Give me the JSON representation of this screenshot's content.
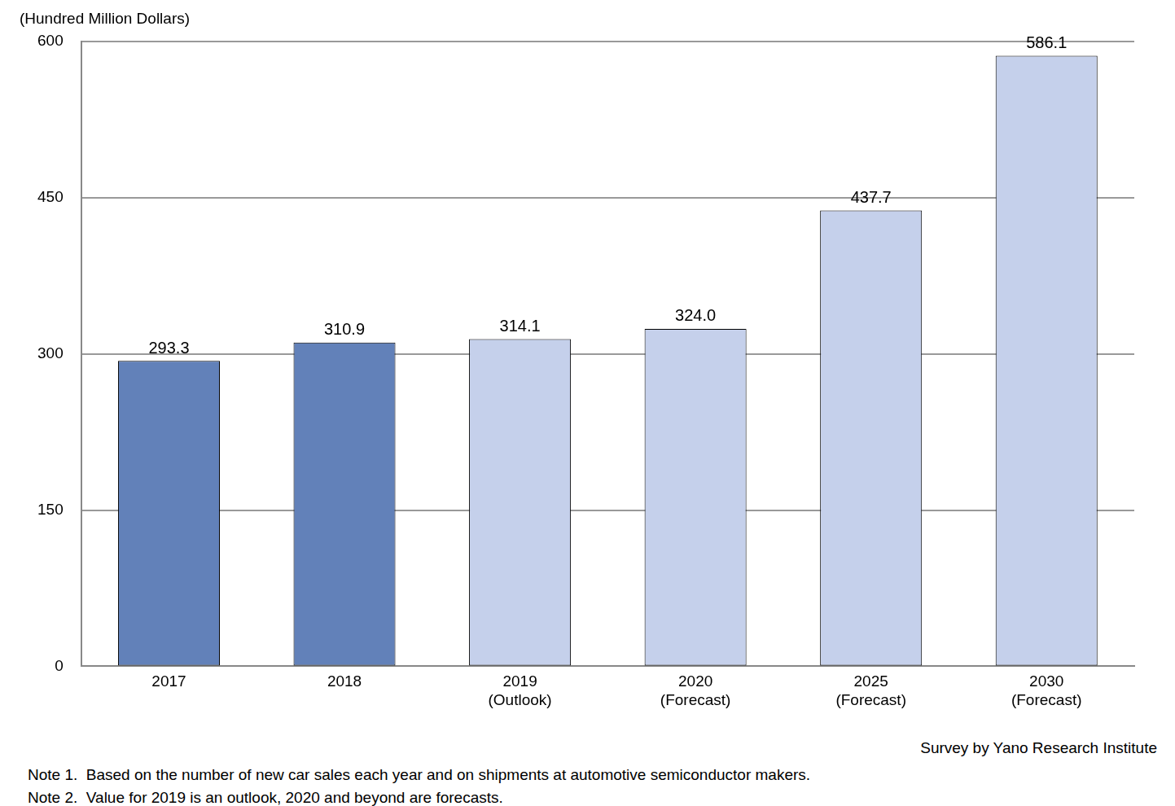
{
  "chart_data": {
    "type": "bar",
    "ylabel": "(Hundred Million Dollars)",
    "categories": [
      "2017",
      "2018",
      "2019\n(Outlook)",
      "2020\n(Forecast)",
      "2025\n(Forecast)",
      "2030\n(Forecast)"
    ],
    "values": [
      293.3,
      310.9,
      314.1,
      324.0,
      437.7,
      586.1
    ],
    "value_labels": [
      "293.3",
      "310.9",
      "314.1",
      "324.0",
      "437.7",
      "586.1"
    ],
    "colors": [
      "#6281b9",
      "#6281b9",
      "#c5d0eb",
      "#c5d0eb",
      "#c5d0eb",
      "#c5d0eb"
    ],
    "ylim": [
      0,
      600
    ],
    "yticks": [
      0,
      150,
      300,
      450,
      600
    ],
    "grid": true,
    "data_labels": true,
    "source": "Survey by Yano Research Institute",
    "notes": [
      "Note 1.  Based on the number of new car sales each year and on shipments at automotive semiconductor makers.",
      "Note 2.  Value for 2019 is an outlook, 2020 and beyond are forecasts."
    ]
  }
}
